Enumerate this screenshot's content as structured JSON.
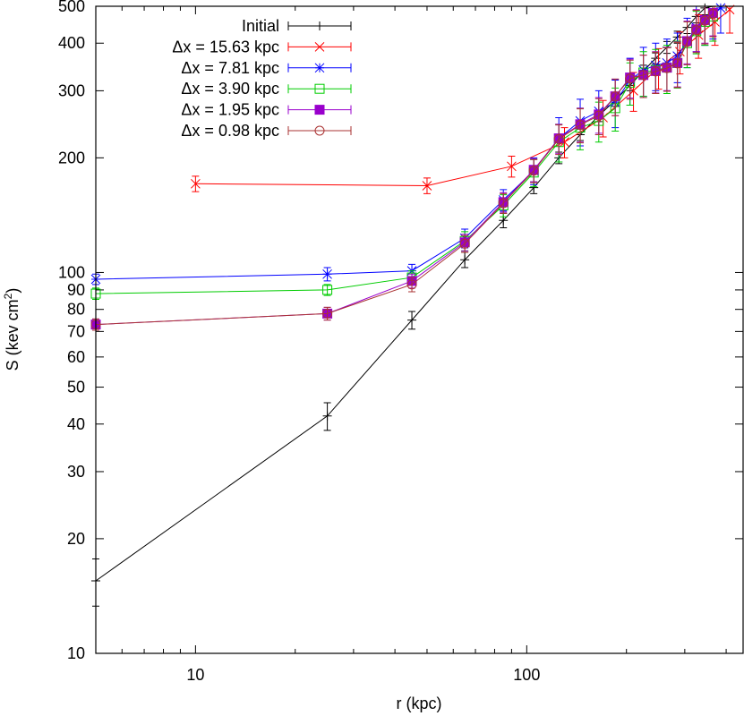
{
  "chart_data": {
    "type": "scatter",
    "title": "",
    "xlabel": "r (kpc)",
    "ylabel": "S (kev cm",
    "ylabel_sup": "2",
    "ylabel_close": ")",
    "xscale": "log",
    "yscale": "log",
    "xlim": [
      5,
      450
    ],
    "ylim": [
      10,
      500
    ],
    "xticks": [
      10,
      100
    ],
    "xtick_labels": [
      "10",
      "100"
    ],
    "yticks": [
      10,
      20,
      30,
      40,
      50,
      60,
      70,
      80,
      90,
      100,
      200,
      300,
      400,
      500
    ],
    "ytick_labels": [
      "10",
      "20",
      "30",
      "40",
      "50",
      "60",
      "70",
      "80",
      "90",
      "100",
      "200",
      "300",
      "400",
      "500"
    ],
    "legend_position": "top-left",
    "series": [
      {
        "name": "Initial",
        "color": "#000000",
        "marker": "plus",
        "x": [
          5,
          25,
          45,
          65,
          85,
          105,
          125,
          145,
          165,
          185,
          205,
          225,
          245,
          265,
          285,
          305,
          325,
          345,
          365
        ],
        "y": [
          15.5,
          42,
          75,
          108,
          137,
          167,
          200,
          230,
          258,
          283,
          310,
          338,
          365,
          390,
          415,
          440,
          470,
          495,
          505
        ],
        "err": [
          2.2,
          3.5,
          4,
          5,
          6,
          6,
          7,
          8,
          9,
          10,
          10,
          12,
          12,
          14,
          15,
          16,
          18,
          20,
          22
        ]
      },
      {
        "name": "Δx = 15.63 kpc",
        "color": "#ff0000",
        "marker": "cross",
        "x": [
          10,
          50,
          90,
          130,
          170,
          210,
          250,
          290,
          330,
          370,
          410
        ],
        "y": [
          171,
          169,
          190,
          220,
          255,
          300,
          345,
          380,
          420,
          455,
          490
        ],
        "err": [
          8,
          8,
          12,
          20,
          28,
          35,
          42,
          48,
          55,
          60,
          65
        ]
      },
      {
        "name": "Δx = 7.81 kpc",
        "color": "#0000ff",
        "marker": "asterisk",
        "x": [
          5,
          25,
          45,
          65,
          85,
          105,
          125,
          145,
          165,
          185,
          205,
          225,
          245,
          265,
          285,
          305,
          325,
          345,
          365,
          385
        ],
        "y": [
          96,
          99,
          101,
          123,
          155,
          185,
          225,
          250,
          265,
          280,
          320,
          340,
          350,
          355,
          370,
          405,
          440,
          460,
          480,
          495
        ],
        "err": [
          3,
          4,
          4,
          7,
          10,
          15,
          30,
          35,
          35,
          40,
          45,
          50,
          50,
          55,
          55,
          60,
          60,
          65,
          70,
          70
        ]
      },
      {
        "name": "Δx = 3.90 kpc",
        "color": "#00cc00",
        "marker": "square-open",
        "x": [
          5,
          25,
          45,
          65,
          85,
          105,
          125,
          145,
          165,
          185,
          205,
          225,
          245,
          265,
          285,
          305,
          325,
          345,
          365
        ],
        "y": [
          88,
          90,
          97,
          121,
          150,
          183,
          220,
          240,
          250,
          270,
          315,
          335,
          340,
          345,
          355,
          400,
          430,
          455,
          470
        ],
        "err": [
          3,
          3,
          4,
          7,
          10,
          15,
          25,
          30,
          30,
          35,
          40,
          45,
          45,
          50,
          50,
          55,
          55,
          60,
          65
        ]
      },
      {
        "name": "Δx = 1.95 kpc",
        "color": "#9900cc",
        "marker": "square-filled",
        "x": [
          5,
          25,
          45,
          65,
          85,
          105,
          125,
          145,
          165,
          185,
          205,
          225,
          245,
          265,
          285,
          305,
          325,
          345,
          365
        ],
        "y": [
          73,
          78,
          95,
          120,
          153,
          186,
          225,
          245,
          260,
          290,
          325,
          330,
          338,
          345,
          355,
          405,
          435,
          460,
          480
        ],
        "err": [
          2.5,
          3,
          4,
          6,
          9,
          13,
          20,
          25,
          28,
          32,
          38,
          42,
          42,
          45,
          48,
          52,
          55,
          60,
          62
        ]
      },
      {
        "name": "Δx = 0.98 kpc",
        "color": "#aa3333",
        "marker": "circle-open",
        "x": [
          5,
          25,
          45,
          65,
          85,
          105,
          125,
          145,
          165,
          185,
          205,
          225,
          245,
          265,
          285,
          305,
          325,
          345,
          365
        ],
        "y": [
          73,
          78,
          93,
          119,
          152,
          185,
          224,
          244,
          258,
          290,
          323,
          330,
          337,
          344,
          354,
          403,
          433,
          458,
          478
        ],
        "err": [
          2.5,
          3,
          4,
          6,
          9,
          13,
          20,
          25,
          28,
          32,
          38,
          42,
          42,
          45,
          48,
          52,
          55,
          60,
          62
        ]
      }
    ]
  }
}
